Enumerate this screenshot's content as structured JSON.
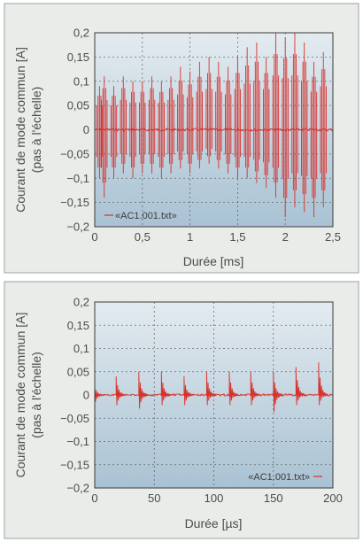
{
  "chart_data": [
    {
      "type": "line",
      "title": "",
      "xlabel": "Durée [ms]",
      "ylabel": "Courant de mode commun [A]",
      "ylabel_note": "(pas à l'échelle)",
      "xlim": [
        0,
        2.5
      ],
      "ylim": [
        -0.2,
        0.2
      ],
      "x_ticks": [
        0,
        0.5,
        1,
        1.5,
        2,
        2.5
      ],
      "x_tick_labels": [
        "0",
        "0,5",
        "1",
        "1,5",
        "2",
        "2,5"
      ],
      "y_ticks": [
        -0.2,
        -0.15,
        -0.1,
        -0.05,
        0,
        0.05,
        0.1,
        0.15,
        0.2
      ],
      "y_tick_labels": [
        "−0,2",
        "−0,15",
        "−0,1",
        "−0,05",
        "0",
        "0,05",
        "0,1",
        "0,15",
        "0,2"
      ],
      "grid": true,
      "legend_position": "bottom-left",
      "series": [
        {
          "name": "«AC1.001.txt»",
          "color": "#d8302b",
          "description_points": [
            {
              "x": 0.05,
              "y_max": 0.09,
              "y_min": -0.1
            },
            {
              "x": 0.1,
              "y_max": 0.11,
              "y_min": -0.14
            },
            {
              "x": 0.2,
              "y_max": 0.09,
              "y_min": -0.1
            },
            {
              "x": 0.3,
              "y_max": 0.11,
              "y_min": -0.09
            },
            {
              "x": 0.4,
              "y_max": 0.1,
              "y_min": -0.1
            },
            {
              "x": 0.5,
              "y_max": 0.1,
              "y_min": -0.09
            },
            {
              "x": 0.6,
              "y_max": 0.11,
              "y_min": -0.09
            },
            {
              "x": 0.7,
              "y_max": 0.1,
              "y_min": -0.1
            },
            {
              "x": 0.8,
              "y_max": 0.11,
              "y_min": -0.09
            },
            {
              "x": 0.9,
              "y_max": 0.13,
              "y_min": -0.08
            },
            {
              "x": 1.0,
              "y_max": 0.12,
              "y_min": -0.09
            },
            {
              "x": 1.1,
              "y_max": 0.14,
              "y_min": -0.08
            },
            {
              "x": 1.2,
              "y_max": 0.15,
              "y_min": -0.07
            },
            {
              "x": 1.3,
              "y_max": 0.14,
              "y_min": -0.08
            },
            {
              "x": 1.4,
              "y_max": 0.13,
              "y_min": -0.09
            },
            {
              "x": 1.5,
              "y_max": 0.15,
              "y_min": -0.1
            },
            {
              "x": 1.6,
              "y_max": 0.17,
              "y_min": -0.1
            },
            {
              "x": 1.7,
              "y_max": 0.18,
              "y_min": -0.11
            },
            {
              "x": 1.8,
              "y_max": 0.15,
              "y_min": -0.12
            },
            {
              "x": 1.9,
              "y_max": 0.2,
              "y_min": -0.14
            },
            {
              "x": 2.0,
              "y_max": 0.19,
              "y_min": -0.18
            },
            {
              "x": 2.1,
              "y_max": 0.2,
              "y_min": -0.16
            },
            {
              "x": 2.2,
              "y_max": 0.18,
              "y_min": -0.17
            },
            {
              "x": 2.3,
              "y_max": 0.14,
              "y_min": -0.18
            },
            {
              "x": 2.4,
              "y_max": 0.16,
              "y_min": -0.16
            }
          ]
        }
      ]
    },
    {
      "type": "line",
      "title": "",
      "xlabel": "Durée [µs]",
      "ylabel": "Courant de mode commun [A]",
      "ylabel_note": "(pas à l'échelle)",
      "xlim": [
        0,
        200
      ],
      "ylim": [
        -0.2,
        0.2
      ],
      "x_ticks": [
        0,
        50,
        100,
        150,
        200
      ],
      "x_tick_labels": [
        "0",
        "50",
        "100",
        "150",
        "200"
      ],
      "y_ticks": [
        -0.2,
        -0.15,
        -0.1,
        -0.05,
        0,
        0.05,
        0.1,
        0.15,
        0.2
      ],
      "y_tick_labels": [
        "−0,2",
        "−0,15",
        "−0,1",
        "−0,05",
        "0",
        "0,05",
        "0,1",
        "0,15",
        "0,2"
      ],
      "grid": true,
      "legend_position": "bottom-right",
      "series": [
        {
          "name": "«AC1.001.txt»",
          "color": "#d8302b",
          "description_points": [
            {
              "x": 0,
              "y_max": 0.02,
              "y_min": -0.02
            },
            {
              "x": 18,
              "y_max": 0.04,
              "y_min": -0.03
            },
            {
              "x": 37,
              "y_max": 0.05,
              "y_min": -0.04
            },
            {
              "x": 56,
              "y_max": 0.05,
              "y_min": -0.03
            },
            {
              "x": 75,
              "y_max": 0.04,
              "y_min": -0.03
            },
            {
              "x": 94,
              "y_max": 0.05,
              "y_min": -0.03
            },
            {
              "x": 113,
              "y_max": 0.05,
              "y_min": -0.03
            },
            {
              "x": 131,
              "y_max": 0.05,
              "y_min": -0.03
            },
            {
              "x": 150,
              "y_max": 0.05,
              "y_min": -0.05
            },
            {
              "x": 169,
              "y_max": 0.06,
              "y_min": -0.03
            },
            {
              "x": 188,
              "y_max": 0.07,
              "y_min": -0.03
            }
          ]
        }
      ]
    }
  ]
}
